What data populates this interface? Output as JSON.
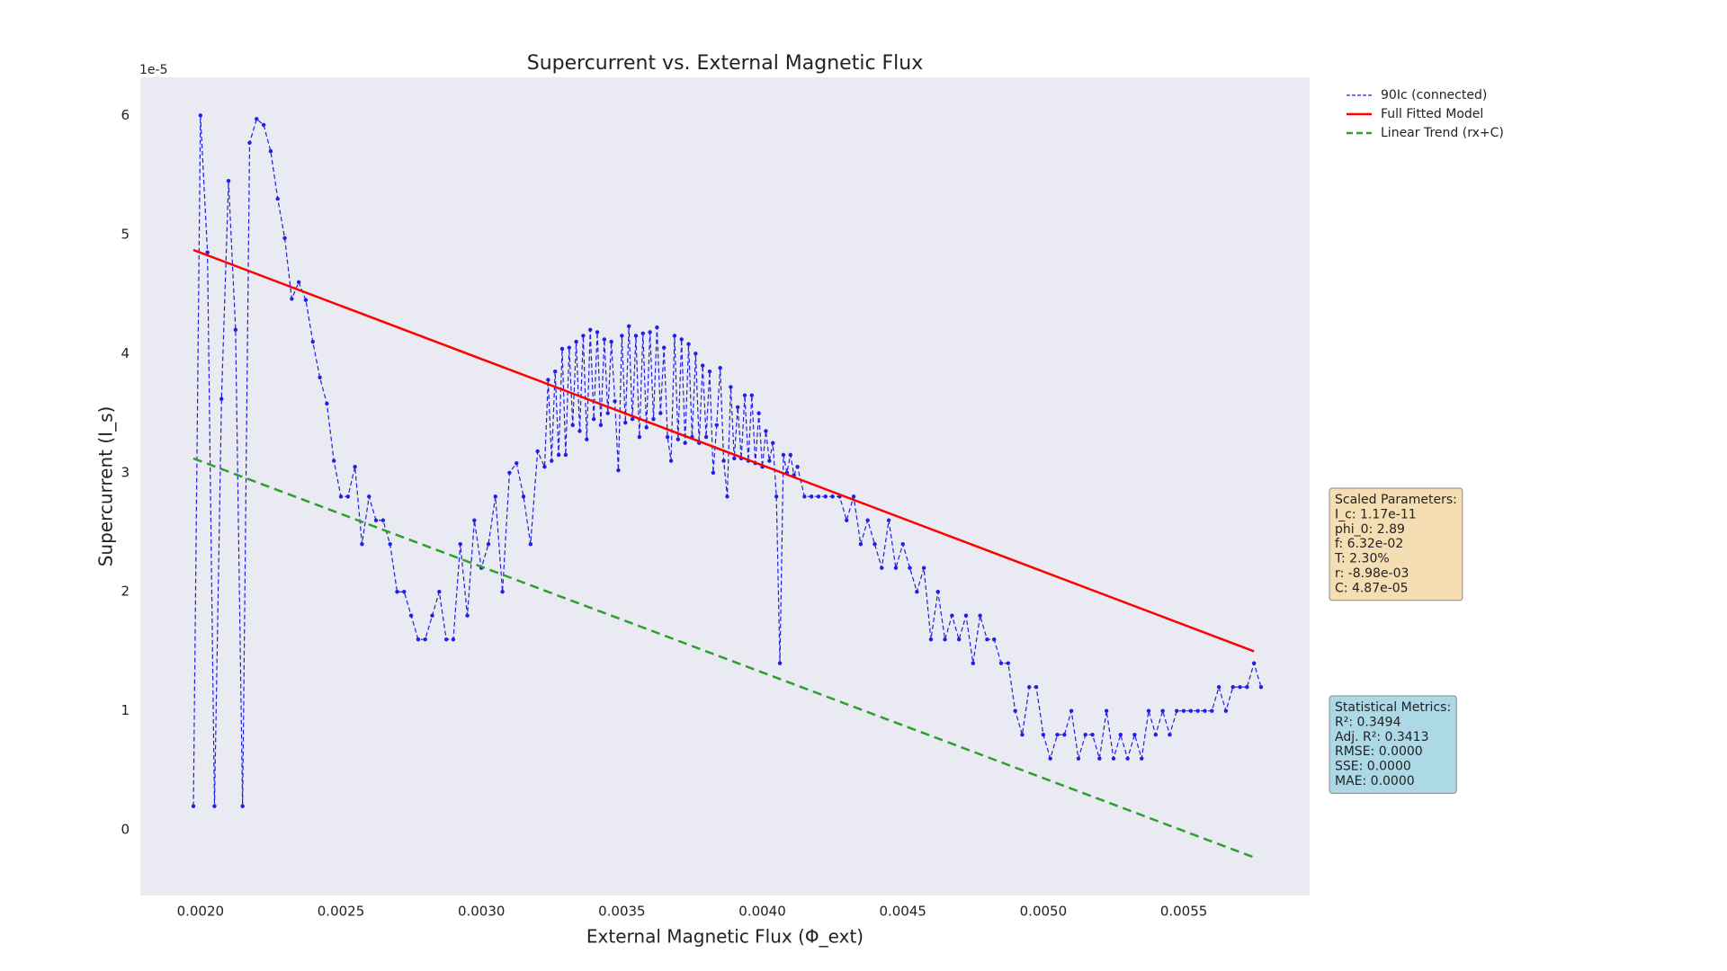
{
  "chart_data": {
    "type": "line",
    "title": "Supercurrent vs. External Magnetic Flux",
    "x_label": "External Magnetic Flux (Φ_ext)",
    "y_label": "Supercurrent (I_s)",
    "y_offset_label": "1e-5",
    "xlim": [
      0.001786,
      0.005948
    ],
    "ylim": [
      -0.55,
      6.32
    ],
    "xticks": [
      {
        "value": 0.002,
        "label": "0.0020"
      },
      0.0025,
      {
        "value": 0.003,
        "label": "0.0030"
      },
      0.0035,
      {
        "value": 0.004,
        "label": "0.0040"
      },
      0.0045,
      {
        "value": 0.005,
        "label": "0.0050"
      },
      0.0055
    ],
    "yticks": [
      0,
      1,
      2,
      3,
      4,
      5,
      6
    ],
    "grid": false,
    "legend_position": "outside-upper-right",
    "series": [
      {
        "name": "90Ic (connected)",
        "color": "#1f1fe6",
        "linestyle": "dashed",
        "marker": true,
        "x": [
          0.001975,
          0.002,
          0.002025,
          0.00205,
          0.002075,
          0.0021,
          0.002125,
          0.00215,
          0.002175,
          0.0022,
          0.002225,
          0.00225,
          0.002275,
          0.0023,
          0.002325,
          0.00235,
          0.002375,
          0.0024,
          0.002425,
          0.00245,
          0.002475,
          0.0025,
          0.002525,
          0.00255,
          0.002575,
          0.0026,
          0.002625,
          0.00265,
          0.002675,
          0.0027,
          0.002725,
          0.00275,
          0.002775,
          0.0028,
          0.002825,
          0.00285,
          0.002875,
          0.0029,
          0.002925,
          0.00295,
          0.002975,
          0.003,
          0.003025,
          0.00305,
          0.003075,
          0.0031,
          0.003125,
          0.00315,
          0.003175,
          0.0032,
          0.003225,
          0.0032375,
          0.00325,
          0.0032625,
          0.003275,
          0.0032875,
          0.0033,
          0.0033125,
          0.003325,
          0.0033375,
          0.00335,
          0.0033625,
          0.003375,
          0.0033875,
          0.0034,
          0.0034125,
          0.003425,
          0.0034375,
          0.00345,
          0.0034625,
          0.003475,
          0.0034875,
          0.0035,
          0.0035125,
          0.003525,
          0.0035375,
          0.00355,
          0.0035625,
          0.003575,
          0.0035875,
          0.0036,
          0.0036125,
          0.003625,
          0.0036375,
          0.00365,
          0.0036625,
          0.003675,
          0.0036875,
          0.0037,
          0.0037125,
          0.003725,
          0.0037375,
          0.00375,
          0.0037625,
          0.003775,
          0.0037875,
          0.0038,
          0.0038125,
          0.003825,
          0.0038375,
          0.00385,
          0.0038625,
          0.003875,
          0.0038875,
          0.0039,
          0.0039125,
          0.003925,
          0.0039375,
          0.00395,
          0.0039625,
          0.003975,
          0.0039875,
          0.004,
          0.0040125,
          0.004025,
          0.0040375,
          0.00405,
          0.0040625,
          0.004075,
          0.0040875,
          0.0041,
          0.0041125,
          0.004125,
          0.00415,
          0.004175,
          0.0042,
          0.004225,
          0.00425,
          0.004275,
          0.0043,
          0.004325,
          0.00435,
          0.004375,
          0.0044,
          0.004425,
          0.00445,
          0.004475,
          0.0045,
          0.004525,
          0.00455,
          0.004575,
          0.0046,
          0.004625,
          0.00465,
          0.004675,
          0.0047,
          0.004725,
          0.00475,
          0.004775,
          0.0048,
          0.004825,
          0.00485,
          0.004875,
          0.0049,
          0.004925,
          0.00495,
          0.004975,
          0.005,
          0.005025,
          0.00505,
          0.005075,
          0.0051,
          0.005125,
          0.00515,
          0.005175,
          0.0052,
          0.005225,
          0.00525,
          0.005275,
          0.0053,
          0.005325,
          0.00535,
          0.005375,
          0.0054,
          0.005425,
          0.00545,
          0.005475,
          0.0055,
          0.005525,
          0.00555,
          0.005575,
          0.0056,
          0.005625,
          0.00565,
          0.005675,
          0.0057,
          0.005725,
          0.00575,
          0.005775
        ],
        "values": [
          0.2,
          6.0,
          4.85,
          0.2,
          3.62,
          5.45,
          4.2,
          0.2,
          5.77,
          5.97,
          5.92,
          5.7,
          5.3,
          4.97,
          4.46,
          4.6,
          4.45,
          4.1,
          3.8,
          3.58,
          3.1,
          2.8,
          2.8,
          3.05,
          2.4,
          2.8,
          2.6,
          2.6,
          2.4,
          2.0,
          2.0,
          1.8,
          1.6,
          1.6,
          1.8,
          2.0,
          1.6,
          1.6,
          2.4,
          1.8,
          2.6,
          2.2,
          2.4,
          2.8,
          2.0,
          3.0,
          3.08,
          2.8,
          2.4,
          3.18,
          3.05,
          3.78,
          3.1,
          3.85,
          3.15,
          4.04,
          3.15,
          4.05,
          3.4,
          4.1,
          3.35,
          4.15,
          3.28,
          4.2,
          3.45,
          4.18,
          3.4,
          4.12,
          3.5,
          4.1,
          3.6,
          3.02,
          4.15,
          3.42,
          4.23,
          3.45,
          4.15,
          3.3,
          4.17,
          3.38,
          4.18,
          3.45,
          4.22,
          3.5,
          4.05,
          3.3,
          3.1,
          4.15,
          3.28,
          4.12,
          3.25,
          4.08,
          3.3,
          4.0,
          3.25,
          3.9,
          3.3,
          3.85,
          3.0,
          3.4,
          3.88,
          3.1,
          2.8,
          3.72,
          3.12,
          3.55,
          3.12,
          3.65,
          3.1,
          3.65,
          3.08,
          3.5,
          3.05,
          3.35,
          3.1,
          3.25,
          2.8,
          1.4,
          3.15,
          3.0,
          3.15,
          2.98,
          3.05,
          2.8,
          2.8,
          2.8,
          2.8,
          2.8,
          2.8,
          2.6,
          2.8,
          2.4,
          2.6,
          2.4,
          2.2,
          2.6,
          2.2,
          2.4,
          2.2,
          2.0,
          2.2,
          1.6,
          2.0,
          1.6,
          1.8,
          1.6,
          1.8,
          1.4,
          1.8,
          1.6,
          1.6,
          1.4,
          1.4,
          1.0,
          0.8,
          1.2,
          1.2,
          0.8,
          0.6,
          0.8,
          0.8,
          1.0,
          0.6,
          0.8,
          0.8,
          0.6,
          1.0,
          0.6,
          0.8,
          0.6,
          0.8,
          0.6,
          1.0,
          0.8,
          1.0,
          0.8,
          1.0,
          1.0,
          1.0,
          1.0,
          1.0,
          1.0,
          1.2,
          1.0,
          1.2,
          1.2,
          1.2,
          1.4,
          1.2
        ]
      },
      {
        "name": "Full Fitted Model",
        "color": "#ff0000",
        "linestyle": "solid",
        "marker": false,
        "x": [
          0.001975,
          0.00575
        ],
        "values": [
          4.87,
          1.5
        ]
      },
      {
        "name": "Linear Trend (rx+C)",
        "color": "#2ca02c",
        "linestyle": "dashed",
        "marker": false,
        "x": [
          0.001975,
          0.00575
        ],
        "values": [
          3.12,
          -0.23
        ]
      }
    ],
    "annotations": [
      {
        "lines": [
          "Scaled Parameters:",
          "I_c: 1.17e-11",
          "phi_0: 2.89",
          "f: 6.32e-02",
          "T: 2.30%",
          "r: -8.98e-03",
          "C: 4.87e-05"
        ],
        "color": "#f5deb3"
      },
      {
        "lines": [
          "Statistical Metrics:",
          "R²: 0.3494",
          "Adj. R²: 0.3413",
          "RMSE: 0.0000",
          "SSE: 0.0000",
          "MAE: 0.0000"
        ],
        "color": "#add8e6"
      }
    ]
  }
}
